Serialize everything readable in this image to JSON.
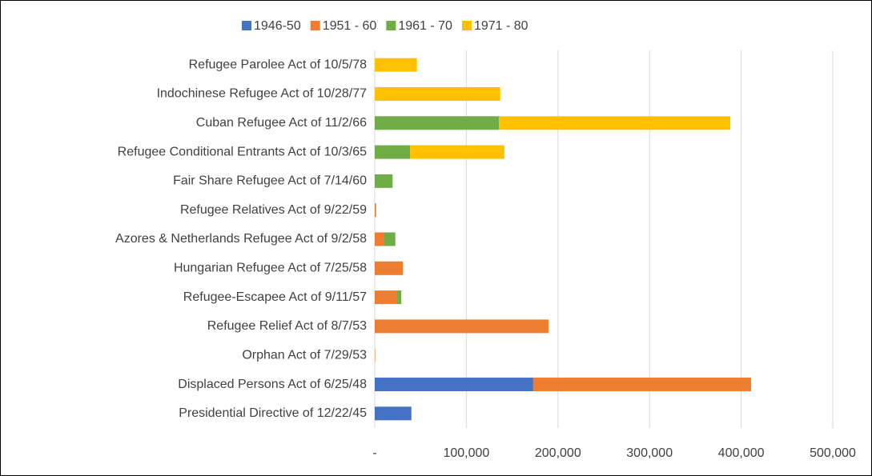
{
  "chart_data": {
    "type": "stacked-bar-horizontal",
    "categories": [
      "Refugee Parolee Act of 10/5/78",
      "Indochinese Refugee Act of 10/28/77",
      "Cuban Refugee Act of 11/2/66",
      "Refugee Conditional Entrants Act of 10/3/65",
      "Fair Share Refugee Act of 7/14/60",
      "Refugee Relatives Act of 9/22/59",
      "Azores & Netherlands Refugee Act of 9/2/58",
      "Hungarian Refugee Act of 7/25/58",
      "Refugee-Escapee Act of 9/11/57",
      "Refugee Relief Act of 8/7/53",
      "Orphan Act of 7/29/53",
      "Displaced Persons Act of 6/25/48",
      "Presidential Directive of 12/22/45"
    ],
    "series": [
      {
        "name": "1946-50",
        "color": "#4472c4",
        "values": [
          null,
          null,
          null,
          null,
          null,
          null,
          null,
          null,
          null,
          null,
          null,
          173000,
          40000
        ]
      },
      {
        "name": "1951 - 60",
        "color": "#ed7d31",
        "values": [
          null,
          null,
          null,
          null,
          null,
          1500,
          10500,
          30700,
          24500,
          189700,
          500,
          237800,
          null
        ]
      },
      {
        "name": "1961 - 70",
        "color": "#70ad47",
        "values": [
          null,
          null,
          135500,
          38500,
          19500,
          null,
          12000,
          null,
          4500,
          null,
          null,
          null,
          null
        ]
      },
      {
        "name": "1971 - 80",
        "color": "#ffc000",
        "values": [
          46000,
          137000,
          252600,
          103000,
          null,
          null,
          null,
          null,
          null,
          null,
          null,
          null,
          null
        ]
      }
    ],
    "xlim": [
      0,
      500000
    ],
    "xticks": [
      {
        "value": 0,
        "label": "-"
      },
      {
        "value": 100000,
        "label": "100,000"
      },
      {
        "value": 200000,
        "label": "200,000"
      },
      {
        "value": 300000,
        "label": "300,000"
      },
      {
        "value": 400000,
        "label": "400,000"
      },
      {
        "value": 500000,
        "label": "500,000"
      }
    ],
    "grid": true,
    "legend": "top"
  }
}
